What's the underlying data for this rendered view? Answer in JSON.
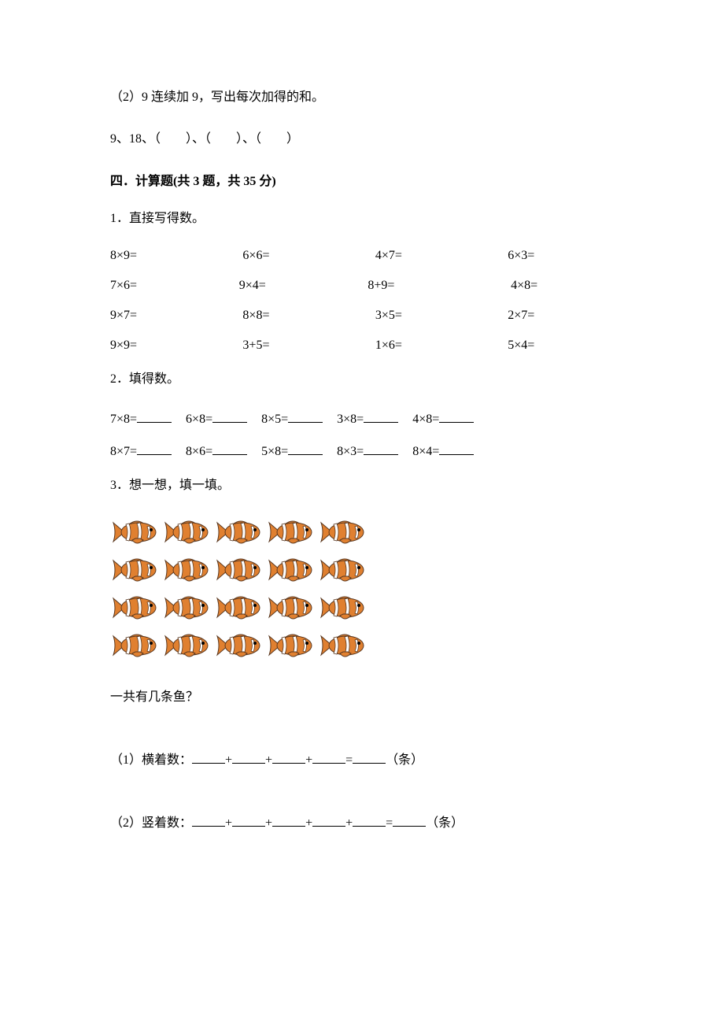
{
  "colors": {
    "text": "#000000",
    "background": "#ffffff",
    "underline": "#000000",
    "fish_body": "#e08030",
    "fish_stripe": "#ffffff",
    "fish_outline": "#5a3820",
    "fish_eye": "#000000"
  },
  "typography": {
    "body_fontsize": 16,
    "title_fontsize": 16,
    "title_weight": "bold",
    "font_family": "SimSun"
  },
  "intro": {
    "sub2_prompt": "（2）9 连续加 9，写出每次加得的和。",
    "sub2_sequence": "9、18、（　　）、（　　）、（　　）"
  },
  "section4": {
    "title": "四．计算题(共 3 题，共 35 分)",
    "q1": {
      "prompt": "1．直接写得数。",
      "rows": [
        [
          "8×9=",
          "6×6=",
          "4×7=",
          "6×3="
        ],
        [
          "7×6=",
          "9×4=",
          "8+9=",
          "4×8="
        ],
        [
          "9×7=",
          "8×8=",
          "3×5=",
          "2×7="
        ],
        [
          "9×9=",
          "3+5=",
          "1×6=",
          "5×4="
        ]
      ]
    },
    "q2": {
      "prompt": "2．填得数。",
      "rows": [
        [
          "7×8=",
          "6×8=",
          "8×5=",
          "3×8=",
          "4×8="
        ],
        [
          "8×7=",
          "8×6=",
          "5×8=",
          "8×3=",
          "8×4="
        ]
      ]
    },
    "q3": {
      "prompt": "3．想一想，填一填。",
      "fish_grid": {
        "rows": 4,
        "cols": 5,
        "fish_width": 64,
        "fish_height": 40
      },
      "question": "一共有几条鱼？",
      "sub1_label": "（1）横着数：",
      "sub1_plus": "+",
      "sub1_eq": "=",
      "sub1_unit": "（条）",
      "sub1_blanks": 4,
      "sub2_label": "（2）竖着数：",
      "sub2_plus": "+",
      "sub2_eq": "=",
      "sub2_unit": "（条）",
      "sub2_blanks": 5
    }
  }
}
